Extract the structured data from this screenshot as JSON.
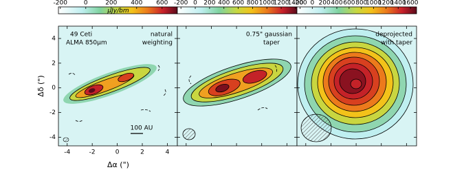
{
  "panels": [
    {
      "colorbar": {
        "label": "μJy/bm",
        "ticks": [
          -200,
          0,
          200,
          400,
          600
        ],
        "lim": [
          -215,
          720
        ]
      },
      "annotations": [
        "49 Ceti",
        "ALMA 850μm",
        "natural",
        "weighting"
      ],
      "scalebar": "100 AU"
    },
    {
      "colorbar": {
        "ticks": [
          -200,
          0,
          200,
          400,
          600,
          800,
          1000,
          1200,
          1400
        ],
        "lim": [
          -250,
          1420
        ]
      },
      "annotations": [
        "0.75\" gaussian",
        "taper"
      ]
    },
    {
      "colorbar": {
        "ticks": [
          -200,
          0,
          200,
          400,
          600,
          800,
          1000,
          1200,
          1400,
          1600
        ],
        "lim": [
          -250,
          1700
        ]
      },
      "annotations": [
        "deprojected",
        "with taper"
      ]
    }
  ],
  "xaxis": {
    "label": "Δα (\")",
    "ticks": [
      -4,
      -2,
      0,
      2,
      4
    ],
    "lim": [
      -4.7,
      4.8
    ]
  },
  "yaxis": {
    "label": "Δδ (\")",
    "ticks": [
      -4,
      -2,
      0,
      2,
      4
    ],
    "lim": [
      -4.7,
      5
    ]
  }
}
